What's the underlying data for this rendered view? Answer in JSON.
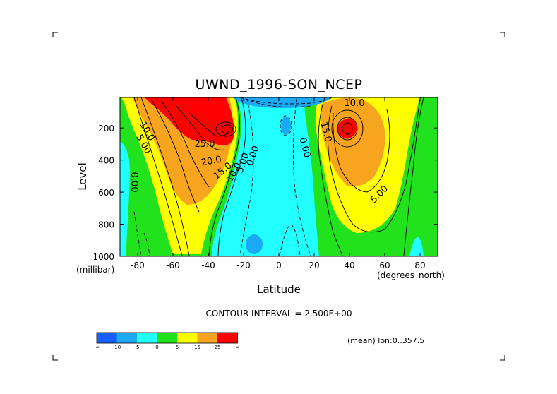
{
  "chart_data": {
    "type": "contour",
    "title": "UWND_1996-SON_NCEP",
    "xlabel": "Latitude",
    "ylabel": "Level",
    "x_units": "(degrees_north)",
    "y_units": "(millibar)",
    "xlim": [
      -90,
      90
    ],
    "ylim": [
      1000,
      10
    ],
    "y_reversed": true,
    "x_ticks": [
      -80,
      -60,
      -40,
      -20,
      0,
      20,
      40,
      60,
      80
    ],
    "x_tick_labels": [
      "-80",
      "-60",
      "-40",
      "-20",
      "0",
      "20",
      "40",
      "60",
      "80"
    ],
    "y_ticks": [
      200,
      400,
      600,
      800,
      1000
    ],
    "y_tick_labels": [
      "200",
      "400",
      "600",
      "800",
      "1000"
    ],
    "contour_interval_text": "CONTOUR INTERVAL = 2.500E+00",
    "footer_text": "(mean) lon:0..357.5",
    "contour_labels": [
      "10.0",
      "5.00",
      "0.00",
      "25.0",
      "20.0",
      "15.0",
      "10.0",
      "5.00",
      "0.00",
      "0.00",
      "10.0",
      "15.0",
      "5.00"
    ],
    "colorbar": {
      "colors": [
        "#1560ff",
        "#1ba8f4",
        "#21ffff",
        "#21e21d",
        "#ffff00",
        "#f7a51e",
        "#ff0000"
      ],
      "tick_labels": [
        "-∞",
        "-10",
        "-5",
        "0",
        "5",
        "15",
        "25",
        "∞"
      ]
    },
    "grid": false,
    "legend": "colorbar-bottom-left"
  }
}
